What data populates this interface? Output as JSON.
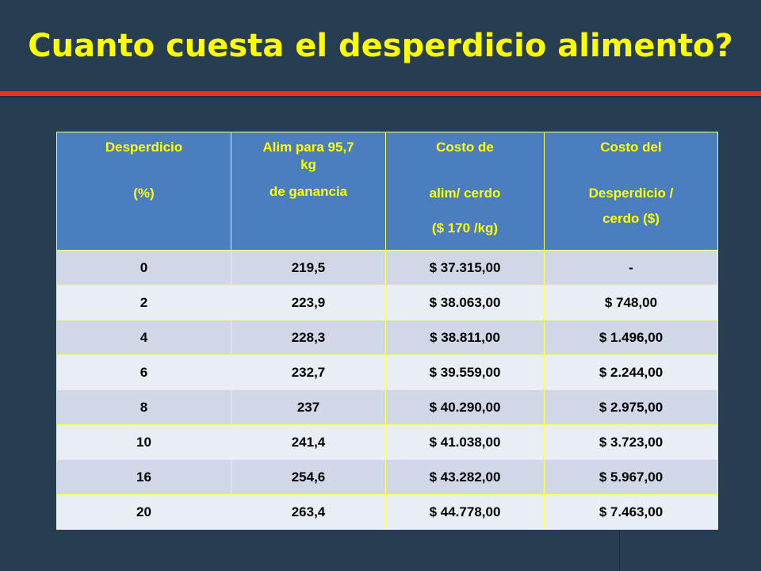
{
  "slide": {
    "title": "Cuanto cuesta el desperdicio alimento?"
  },
  "table": {
    "headers": [
      {
        "lines": [
          "Desperdicio",
          "(%)"
        ]
      },
      {
        "lines": [
          "Alim para 95,7",
          "kg",
          "de ganancia"
        ]
      },
      {
        "lines": [
          "Costo de",
          "alim/ cerdo",
          "($ 170 /kg)"
        ]
      },
      {
        "lines": [
          "Costo del",
          "Desperdicio /",
          "cerdo ($)"
        ]
      }
    ],
    "rows": [
      [
        "0",
        "219,5",
        "$ 37.315,00",
        "-"
      ],
      [
        "2",
        "223,9",
        "$ 38.063,00",
        "$ 748,00"
      ],
      [
        "4",
        "228,3",
        "$ 38.811,00",
        "$ 1.496,00"
      ],
      [
        "6",
        "232,7",
        "$ 39.559,00",
        "$ 2.244,00"
      ],
      [
        "8",
        "237",
        "$ 40.290,00",
        "$ 2.975,00"
      ],
      [
        "10",
        "241,4",
        "$ 41.038,00",
        "$ 3.723,00"
      ],
      [
        "16",
        "254,6",
        "$ 43.282,00",
        "$ 5.967,00"
      ],
      [
        "20",
        "263,4",
        "$ 44.778,00",
        "$ 7.463,00"
      ]
    ]
  },
  "colors": {
    "background": "#263e4f",
    "title": "#ffff00",
    "accent_rule": "#f0301c",
    "header_bg": "#4a7ebf",
    "header_text": "#ffff00",
    "row_odd": "#d0d8e8",
    "row_even": "#e9edf4",
    "grid": "#ffff66"
  }
}
